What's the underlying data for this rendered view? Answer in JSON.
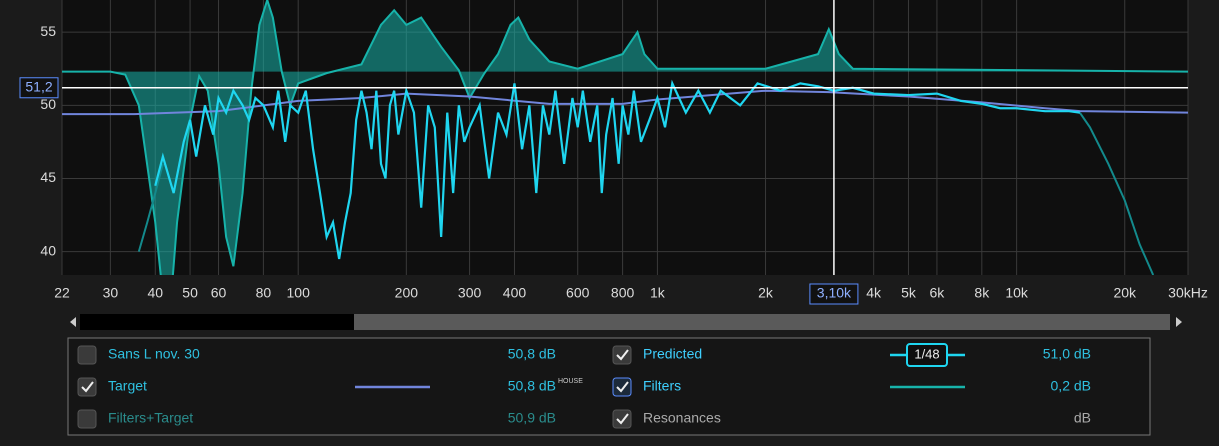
{
  "chart_data": {
    "type": "line",
    "log_x": true,
    "grid": true,
    "xlim": [
      22,
      30000
    ],
    "ylim": [
      38.4,
      57.2
    ],
    "xticks": [
      22,
      30,
      40,
      50,
      60,
      80,
      100,
      200,
      300,
      400,
      600,
      800,
      {
        "value": 1000,
        "label": "1k"
      },
      {
        "value": 2000,
        "label": "2k"
      },
      {
        "value": 4000,
        "label": "4k"
      },
      {
        "value": 5000,
        "label": "5k"
      },
      {
        "value": 6000,
        "label": "6k"
      },
      {
        "value": 8000,
        "label": "8k"
      },
      {
        "value": 10000,
        "label": "10k"
      },
      {
        "value": 20000,
        "label": "20k"
      },
      {
        "value": 30000,
        "label": "30kHz"
      }
    ],
    "yticks": [
      40,
      45,
      50,
      55
    ],
    "cursor": {
      "x": 3100,
      "x_label": "3,10k",
      "y": 51.2,
      "y_label": "51,2"
    },
    "series": [
      {
        "name": "Filters",
        "color": "#17b3aa",
        "baseline": 52.3,
        "x": [
          22,
          30,
          33,
          36,
          40,
          42,
          44,
          46,
          50,
          53,
          56,
          60,
          63,
          66,
          70,
          74,
          78,
          82,
          85,
          90,
          95,
          100,
          120,
          150,
          170,
          185,
          200,
          220,
          250,
          280,
          300,
          330,
          360,
          390,
          410,
          440,
          500,
          600,
          800,
          880,
          920,
          1000,
          2000,
          2800,
          3000,
          3200,
          3500,
          30000
        ],
        "values": [
          52.3,
          52.3,
          52.1,
          50,
          42,
          37,
          36,
          42,
          49,
          52,
          51,
          46,
          41,
          39,
          44,
          51,
          55.5,
          57.2,
          56,
          52.3,
          50,
          51.5,
          52.2,
          52.8,
          55.5,
          56.5,
          55.5,
          56,
          54,
          52.4,
          50.5,
          52.2,
          53.5,
          55.5,
          56,
          54.5,
          53,
          52.5,
          53.5,
          55,
          53.5,
          52.5,
          52.5,
          53.5,
          55.2,
          53.5,
          52.5,
          52.3
        ]
      },
      {
        "name": "Target",
        "color": "#7185dc",
        "x": [
          22,
          35,
          60,
          100,
          150,
          200,
          300,
          500,
          800,
          1000,
          2000,
          3000,
          5000,
          8000,
          12000,
          15000,
          30000
        ],
        "values": [
          49.4,
          49.4,
          49.6,
          50.3,
          50.5,
          50.8,
          50.6,
          50.1,
          50.1,
          50.4,
          51,
          50.9,
          50.6,
          50.2,
          49.8,
          49.6,
          49.5
        ]
      },
      {
        "name": "Sans L nov. 30",
        "color": "#138a8c",
        "x": [
          36,
          38,
          40,
          42,
          15000,
          16000,
          18000,
          20000,
          22000,
          24000
        ],
        "values": [
          40,
          42,
          44,
          46,
          49.5,
          48.5,
          46,
          43.5,
          40.5,
          38.4
        ]
      },
      {
        "name": "Predicted",
        "color": "#1fd6f0",
        "x": [
          40,
          42,
          45,
          48,
          50,
          52,
          55,
          58,
          60,
          63,
          66,
          70,
          73,
          76,
          80,
          85,
          88,
          92,
          95,
          100,
          105,
          110,
          115,
          120,
          125,
          130,
          135,
          140,
          145,
          150,
          155,
          160,
          165,
          170,
          175,
          180,
          185,
          190,
          200,
          210,
          220,
          230,
          240,
          250,
          260,
          270,
          280,
          290,
          300,
          320,
          340,
          360,
          380,
          400,
          420,
          440,
          460,
          480,
          500,
          520,
          550,
          580,
          600,
          620,
          650,
          680,
          700,
          720,
          750,
          780,
          800,
          830,
          860,
          900,
          950,
          1000,
          1050,
          1100,
          1200,
          1300,
          1400,
          1500,
          1700,
          1900,
          2200,
          2500,
          2800,
          3100,
          3500,
          4000,
          5000,
          6000,
          7000,
          8000,
          9000,
          10000,
          12000,
          14000,
          15000
        ],
        "values": [
          44.5,
          46.5,
          44,
          47.5,
          49,
          46.5,
          50,
          48,
          50.5,
          49.5,
          51,
          50,
          49,
          50.5,
          50,
          48.5,
          51,
          47.5,
          50,
          49.5,
          51,
          47,
          44,
          41,
          42,
          39.5,
          42,
          44,
          49,
          51,
          49.5,
          47,
          51,
          46,
          45,
          50,
          51,
          48,
          51,
          49.5,
          43,
          50,
          48.5,
          41,
          49.5,
          44,
          50,
          47.5,
          48.5,
          50,
          45,
          49.5,
          48,
          51.5,
          47,
          50,
          44,
          50,
          48,
          51,
          46,
          50.5,
          48.5,
          51,
          47.5,
          50,
          44,
          48,
          50.5,
          46,
          50,
          48,
          51,
          47.5,
          49,
          50.5,
          48.5,
          51.5,
          49.5,
          51,
          49.5,
          51,
          50,
          51.5,
          51,
          51.5,
          51.3,
          51,
          51.2,
          50.8,
          50.7,
          50.8,
          50.3,
          50.1,
          49.8,
          49.8,
          49.6,
          49.6,
          49.5
        ]
      }
    ]
  },
  "legend": {
    "rows": [
      [
        {
          "checked": false,
          "label": "Sans L nov. 30",
          "value": "50,8 dB"
        },
        {
          "checked": true,
          "label": "Predicted",
          "smoothing": "1/48",
          "value": "51,0 dB"
        }
      ],
      [
        {
          "checked": true,
          "label": "Target",
          "value": "50,8 dB",
          "note": "HOUSE"
        },
        {
          "checked": true,
          "label": "Filters",
          "value": "0,2 dB"
        }
      ],
      [
        {
          "checked": false,
          "label": "Filters+Target",
          "value": "50,9 dB"
        },
        {
          "checked": true,
          "label": "Resonances",
          "value": "dB"
        }
      ]
    ]
  }
}
